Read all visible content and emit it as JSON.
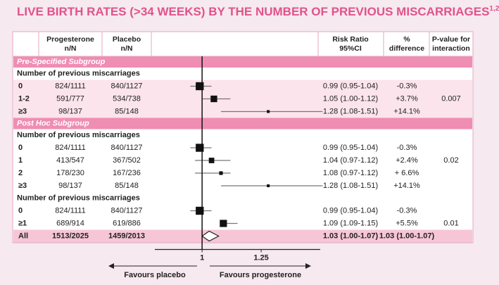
{
  "chart_data": {
    "type": "forest",
    "title": "LIVE BIRTH RATES (>34 WEEKS) BY THE NUMBER OF PREVIOUS MISCARRIAGES",
    "title_superscript": "1,2",
    "headers": {
      "progesterone": [
        "Progesterone",
        "n/N"
      ],
      "placebo": [
        "Placebo",
        "n/N"
      ],
      "ratio": [
        "Risk Ratio",
        "95%CI"
      ],
      "difference": [
        "%",
        "difference"
      ],
      "p": [
        "P-value for",
        "interaction"
      ]
    },
    "xlim": [
      0.8,
      1.5
    ],
    "xticks": [
      1,
      1.25
    ],
    "favours_left": "Favours placebo",
    "favours_right": "Favours progesterone",
    "sections": [
      {
        "title": "Pre-Specified Subgroup",
        "shaded": true,
        "groups": [
          {
            "heading": "Number of previous miscarriages",
            "rows": [
              {
                "label": "0",
                "progesterone": "824/1111",
                "placebo": "840/1127",
                "ratio_label": "0.99 (0.95-1.04)",
                "difference": "-0.3%",
                "ratio": 0.99,
                "ci": [
                  0.95,
                  1.04
                ]
              },
              {
                "label": "1-2",
                "progesterone": "591/777",
                "placebo": "534/738",
                "ratio_label": "1.05 (1.00-1.12)",
                "difference": "+3.7%",
                "ratio": 1.05,
                "ci": [
                  1.0,
                  1.12
                ],
                "p": "0.007"
              },
              {
                "label": "≥3",
                "progesterone": "98/137",
                "placebo": "85/148",
                "ratio_label": "1.28 (1.08-1.51)",
                "difference": "+14.1%",
                "ratio": 1.28,
                "ci": [
                  1.08,
                  1.51
                ]
              }
            ]
          }
        ]
      },
      {
        "title": "Post Hoc Subgroup",
        "shaded": false,
        "groups": [
          {
            "heading": "Number of previous miscarriages",
            "rows": [
              {
                "label": "0",
                "progesterone": "824/1111",
                "placebo": "840/1127",
                "ratio_label": "0.99 (0.95-1.04)",
                "difference": "-0.3%",
                "ratio": 0.99,
                "ci": [
                  0.95,
                  1.04
                ]
              },
              {
                "label": "1",
                "progesterone": "413/547",
                "placebo": "367/502",
                "ratio_label": "1.04 (0.97-1.12)",
                "difference": "+2.4%",
                "ratio": 1.04,
                "ci": [
                  0.97,
                  1.12
                ],
                "p": "0.02"
              },
              {
                "label": "2",
                "progesterone": "178/230",
                "placebo": "167/236",
                "ratio_label": "1.08 (0.97-1.12)",
                "difference": "+ 6.6%",
                "ratio": 1.08,
                "ci": [
                  0.97,
                  1.12
                ]
              },
              {
                "label": "≥3",
                "progesterone": "98/137",
                "placebo": "85/148",
                "ratio_label": "1.28 (1.08-1.51)",
                "difference": "+14.1%",
                "ratio": 1.28,
                "ci": [
                  1.08,
                  1.51
                ]
              }
            ]
          },
          {
            "heading": "Number of previous miscarriages",
            "rows": [
              {
                "label": "0",
                "progesterone": "824/1111",
                "placebo": "840/1127",
                "ratio_label": "0.99 (0.95-1.04)",
                "difference": "-0.3%",
                "ratio": 0.99,
                "ci": [
                  0.95,
                  1.04
                ]
              },
              {
                "label": "≥1",
                "progesterone": "689/914",
                "placebo": "619/886",
                "ratio_label": "1.09 (1.09-1.15)",
                "difference": "+5.5%",
                "ratio": 1.09,
                "ci": [
                  1.09,
                  1.15
                ],
                "p": "0.01"
              }
            ]
          }
        ]
      }
    ],
    "overall": {
      "label": "All",
      "progesterone": "1513/2025",
      "placebo": "1459/2013",
      "ratio_label": "1.03 (1.00-1.07)",
      "difference": "1.03 (1.00-1.07)",
      "ratio": 1.03,
      "ci": [
        1.0,
        1.07
      ]
    }
  }
}
